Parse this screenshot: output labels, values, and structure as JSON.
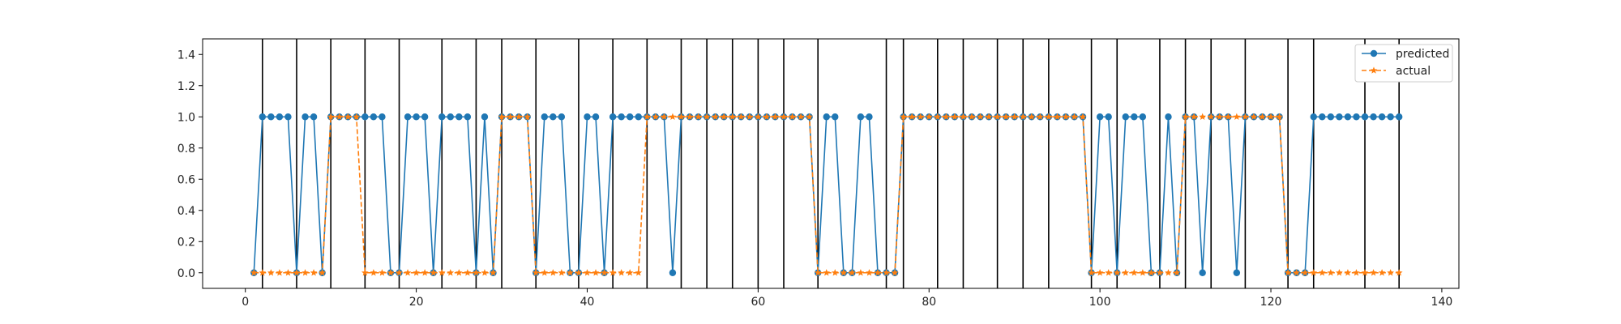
{
  "chart_data": {
    "type": "line",
    "title": "",
    "xlabel": "",
    "ylabel": "",
    "xlim": [
      -5,
      142
    ],
    "ylim": [
      -0.1,
      1.5
    ],
    "xticks": [
      0,
      20,
      40,
      60,
      80,
      100,
      120,
      140
    ],
    "yticks": [
      0.0,
      0.2,
      0.4,
      0.6,
      0.8,
      1.0,
      1.2,
      1.4
    ],
    "xtick_labels": [
      "0",
      "20",
      "40",
      "60",
      "80",
      "100",
      "120",
      "140"
    ],
    "ytick_labels": [
      "0.0",
      "0.2",
      "0.4",
      "0.6",
      "0.8",
      "1.0",
      "1.2",
      "1.4"
    ],
    "legend_position": "top-right",
    "x": [
      1,
      2,
      3,
      4,
      5,
      6,
      7,
      8,
      9,
      10,
      11,
      12,
      13,
      14,
      15,
      16,
      17,
      18,
      19,
      20,
      21,
      22,
      23,
      24,
      25,
      26,
      27,
      28,
      29,
      30,
      31,
      32,
      33,
      34,
      35,
      36,
      37,
      38,
      39,
      40,
      41,
      42,
      43,
      44,
      45,
      46,
      47,
      48,
      49,
      50,
      51,
      52,
      53,
      54,
      55,
      56,
      57,
      58,
      59,
      60,
      61,
      62,
      63,
      64,
      65,
      66,
      67,
      68,
      69,
      70,
      71,
      72,
      73,
      74,
      75,
      76,
      77,
      78,
      79,
      80,
      81,
      82,
      83,
      84,
      85,
      86,
      87,
      88,
      89,
      90,
      91,
      92,
      93,
      94,
      95,
      96,
      97,
      98,
      99,
      100,
      101,
      102,
      103,
      104,
      105,
      106,
      107,
      108,
      109,
      110,
      111,
      112,
      113,
      114,
      115,
      116,
      117,
      118,
      119,
      120,
      121,
      122,
      123,
      124,
      125,
      126,
      127,
      128,
      129,
      130,
      131,
      132,
      133,
      134,
      135
    ],
    "series": [
      {
        "name": "predicted",
        "color": "#1f77b4",
        "marker": "circle",
        "linestyle": "solid",
        "values": [
          0,
          1,
          1,
          1,
          1,
          0,
          1,
          1,
          0,
          1,
          1,
          1,
          1,
          1,
          1,
          1,
          0,
          0,
          1,
          1,
          1,
          0,
          1,
          1,
          1,
          1,
          0,
          1,
          0,
          1,
          1,
          1,
          1,
          0,
          1,
          1,
          1,
          0,
          0,
          1,
          1,
          0,
          1,
          1,
          1,
          1,
          1,
          1,
          1,
          0,
          1,
          1,
          1,
          1,
          1,
          1,
          1,
          1,
          1,
          1,
          1,
          1,
          1,
          1,
          1,
          1,
          0,
          1,
          1,
          0,
          0,
          1,
          1,
          0,
          0,
          0,
          1,
          1,
          1,
          1,
          1,
          1,
          1,
          1,
          1,
          1,
          1,
          1,
          1,
          1,
          1,
          1,
          1,
          1,
          1,
          1,
          1,
          1,
          0,
          1,
          1,
          0,
          1,
          1,
          1,
          0,
          0,
          1,
          0,
          1,
          1,
          0,
          1,
          1,
          1,
          0,
          1,
          1,
          1,
          1,
          1,
          0,
          0,
          0,
          1,
          1,
          1,
          1,
          1,
          1,
          1,
          1,
          1,
          1,
          1
        ]
      },
      {
        "name": "actual",
        "color": "#ff7f0e",
        "marker": "star",
        "linestyle": "dashed",
        "values": [
          0,
          0,
          0,
          0,
          0,
          0,
          0,
          0,
          0,
          1,
          1,
          1,
          1,
          0,
          0,
          0,
          0,
          0,
          0,
          0,
          0,
          0,
          0,
          0,
          0,
          0,
          0,
          0,
          0,
          1,
          1,
          1,
          1,
          0,
          0,
          0,
          0,
          0,
          0,
          0,
          0,
          0,
          0,
          0,
          0,
          0,
          1,
          1,
          1,
          1,
          1,
          1,
          1,
          1,
          1,
          1,
          1,
          1,
          1,
          1,
          1,
          1,
          1,
          1,
          1,
          1,
          0,
          0,
          0,
          0,
          0,
          0,
          0,
          0,
          0,
          0,
          1,
          1,
          1,
          1,
          1,
          1,
          1,
          1,
          1,
          1,
          1,
          1,
          1,
          1,
          1,
          1,
          1,
          1,
          1,
          1,
          1,
          1,
          0,
          0,
          0,
          0,
          0,
          0,
          0,
          0,
          0,
          0,
          0,
          1,
          1,
          1,
          1,
          1,
          1,
          1,
          1,
          1,
          1,
          1,
          1,
          0,
          0,
          0,
          0,
          0,
          0,
          0,
          0,
          0,
          0,
          0,
          0,
          0,
          0
        ]
      }
    ],
    "vertical_lines_x": [
      2,
      6,
      10,
      14,
      18,
      23,
      27,
      30,
      34,
      39,
      43,
      47,
      51,
      54,
      57,
      60,
      63,
      67,
      75,
      77,
      81,
      84,
      88,
      91,
      94,
      99,
      102,
      107,
      110,
      113,
      117,
      122,
      125,
      131,
      135
    ]
  }
}
